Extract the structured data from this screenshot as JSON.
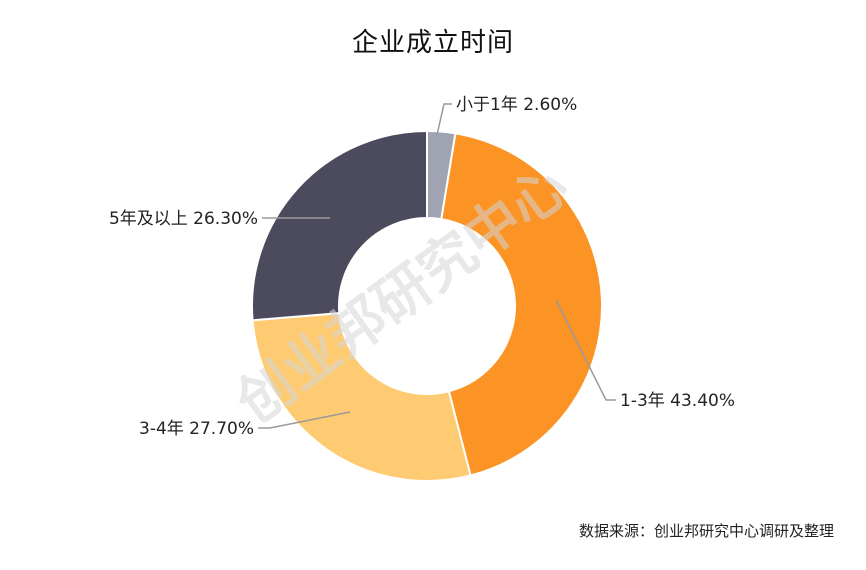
{
  "chart_data": {
    "type": "pie",
    "title": "企业成立时间",
    "categories": [
      "小于1年",
      "1-3年",
      "3-4年",
      "5年及以上"
    ],
    "values": [
      2.6,
      43.4,
      27.7,
      26.3
    ],
    "value_labels": [
      "2.60%",
      "43.40%",
      "27.70%",
      "26.30%"
    ],
    "colors": [
      "#a0a3b1",
      "#fb9325",
      "#fecb72",
      "#4c4b5e"
    ],
    "donut": true,
    "legend": "none"
  },
  "watermark": "创业邦研究中心",
  "source": "数据来源：创业邦研究中心调研及整理"
}
